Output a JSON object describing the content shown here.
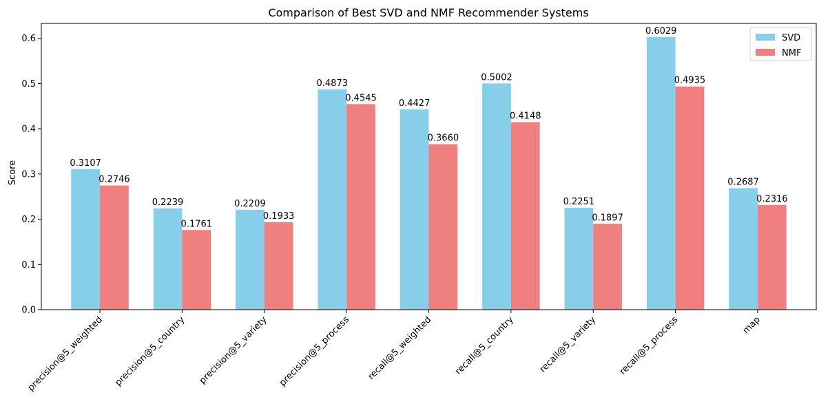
{
  "chart_data": {
    "type": "bar",
    "title": "Comparison of Best SVD and NMF Recommender Systems",
    "xlabel": "",
    "ylabel": "Score",
    "ylim": [
      0,
      0.633
    ],
    "yticks": [
      "0.0",
      "0.1",
      "0.2",
      "0.3",
      "0.4",
      "0.5",
      "0.6"
    ],
    "categories": [
      "precision@5_weighted",
      "precision@5_country",
      "precision@5_variety",
      "precision@5_process",
      "recall@5_weighted",
      "recall@5_country",
      "recall@5_variety",
      "recall@5_process",
      "map"
    ],
    "series": [
      {
        "name": "SVD",
        "color": "#87ceeb",
        "values": [
          0.3107,
          0.2239,
          0.2209,
          0.4873,
          0.4427,
          0.5002,
          0.2251,
          0.6029,
          0.2687
        ],
        "labels": [
          "0.3107",
          "0.2239",
          "0.2209",
          "0.4873",
          "0.4427",
          "0.5002",
          "0.2251",
          "0.6029",
          "0.2687"
        ]
      },
      {
        "name": "NMF",
        "color": "#f08080",
        "values": [
          0.2746,
          0.1761,
          0.1933,
          0.4545,
          0.366,
          0.4148,
          0.1897,
          0.4935,
          0.2316
        ],
        "labels": [
          "0.2746",
          "0.1761",
          "0.1933",
          "0.4545",
          "0.3660",
          "0.4148",
          "0.1897",
          "0.4935",
          "0.2316"
        ]
      }
    ],
    "legend": {
      "position": "top-right"
    },
    "grid": false
  }
}
